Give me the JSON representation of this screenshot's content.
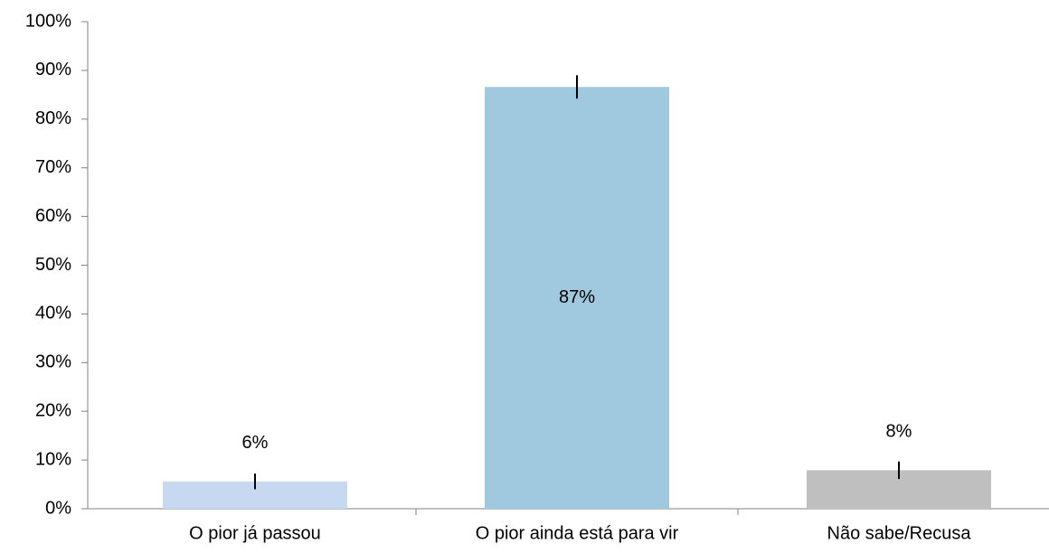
{
  "chart_data": {
    "type": "bar",
    "categories": [
      "O pior já passou",
      "O pior ainda está para vir",
      "Não sabe/Recusa"
    ],
    "values": [
      5.6,
      86.6,
      7.9
    ],
    "value_labels": [
      "6%",
      "87%",
      "8%"
    ],
    "errors": [
      1.6,
      2.4,
      1.8
    ],
    "colors": [
      "#c6d9f0",
      "#a0c9e0",
      "#bfbfbf"
    ],
    "ylim": [
      0,
      100
    ],
    "yticks": [
      {
        "value": 0,
        "label": "0%"
      },
      {
        "value": 10,
        "label": "10%"
      },
      {
        "value": 20,
        "label": "20%"
      },
      {
        "value": 30,
        "label": "30%"
      },
      {
        "value": 40,
        "label": "40%"
      },
      {
        "value": 50,
        "label": "50%"
      },
      {
        "value": 60,
        "label": "60%"
      },
      {
        "value": 70,
        "label": "70%"
      },
      {
        "value": 80,
        "label": "80%"
      },
      {
        "value": 90,
        "label": "90%"
      },
      {
        "value": 100,
        "label": "100%"
      }
    ]
  }
}
